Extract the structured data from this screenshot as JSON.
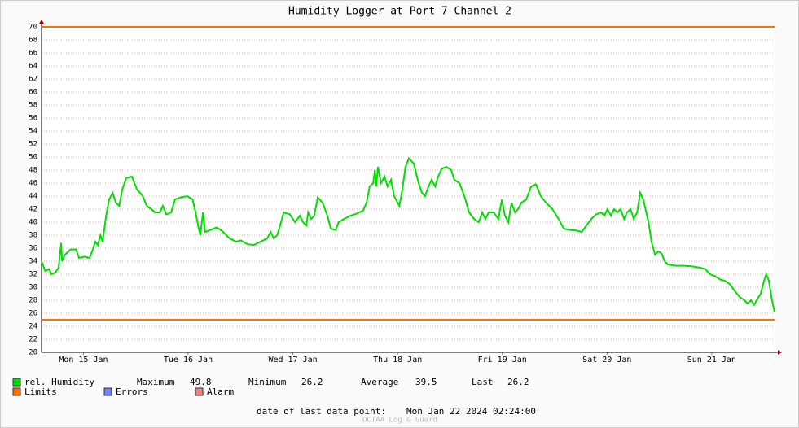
{
  "chart_data": {
    "type": "line",
    "title": "Humidity Logger at Port 7 Channel 2",
    "xlim": [
      2.4,
      170.4
    ],
    "xticks": [
      {
        "value": 12,
        "label": "Mon 15 Jan"
      },
      {
        "value": 36,
        "label": "Tue 16 Jan"
      },
      {
        "value": 60,
        "label": "Wed 17 Jan"
      },
      {
        "value": 84,
        "label": "Thu 18 Jan"
      },
      {
        "value": 108,
        "label": "Fri 19 Jan"
      },
      {
        "value": 132,
        "label": "Sat 20 Jan"
      },
      {
        "value": 156,
        "label": "Sun 21 Jan"
      }
    ],
    "ylim": [
      20,
      70
    ],
    "yticks": [
      20,
      22,
      24,
      26,
      28,
      30,
      32,
      34,
      36,
      38,
      40,
      42,
      44,
      46,
      48,
      50,
      52,
      54,
      56,
      58,
      60,
      62,
      64,
      66,
      68,
      70
    ],
    "grid": true,
    "x": [
      2.4,
      3.2,
      4.1,
      4.7,
      5.6,
      6.3,
      6.9,
      7.1,
      7.8,
      9.0,
      10.3,
      11.0,
      12.3,
      13.4,
      14.0,
      14.7,
      15.3,
      15.9,
      16.4,
      17.2,
      17.9,
      18.7,
      19.4,
      20.2,
      20.9,
      21.8,
      23.1,
      24.3,
      25.6,
      26.5,
      27.6,
      28.4,
      29.5,
      30.2,
      31.0,
      32.1,
      33.0,
      34.3,
      35.8,
      37.0,
      37.7,
      38.4,
      38.8,
      39.4,
      39.9,
      41.1,
      42.6,
      44.0,
      45.5,
      47.0,
      48.1,
      49.6,
      51.1,
      52.6,
      54.1,
      54.9,
      55.6,
      56.4,
      57.1,
      57.9,
      59.3,
      60.5,
      61.6,
      62.3,
      63.1,
      63.5,
      64.2,
      64.9,
      65.7,
      66.8,
      67.9,
      68.7,
      69.8,
      70.5,
      71.7,
      73.2,
      74.6,
      76.1,
      76.9,
      77.6,
      78.4,
      78.8,
      79.1,
      79.5,
      80.2,
      81.0,
      81.7,
      82.5,
      83.2,
      84.4,
      85.1,
      85.8,
      86.6,
      87.7,
      88.8,
      89.6,
      90.3,
      91.1,
      91.8,
      92.6,
      93.3,
      94.1,
      95.2,
      96.3,
      97.0,
      98.2,
      99.3,
      100.4,
      101.5,
      102.6,
      103.4,
      104.1,
      104.9,
      106.0,
      107.1,
      107.9,
      108.6,
      109.4,
      110.1,
      110.9,
      111.6,
      112.4,
      113.5,
      114.6,
      115.7,
      116.8,
      118.0,
      119.5,
      120.9,
      122.1,
      123.6,
      125.0,
      126.2,
      127.3,
      128.4,
      129.5,
      130.6,
      131.4,
      132.1,
      132.9,
      133.6,
      134.4,
      135.1,
      135.9,
      136.6,
      137.4,
      138.1,
      138.9,
      139.6,
      140.3,
      141.5,
      142.2,
      143.0,
      143.7,
      144.5,
      145.2,
      145.9,
      147.8,
      149.7,
      151.5,
      153.4,
      154.5,
      155.6,
      156.8,
      157.9,
      159.0,
      160.1,
      161.2,
      162.4,
      163.5,
      164.2,
      165.0,
      165.7,
      166.5,
      167.2,
      168.0,
      168.5,
      169.1,
      169.8,
      170.4
    ],
    "series": [
      {
        "name": "rel. Humidity",
        "color": "#00e000",
        "values": [
          34,
          32.5,
          32.8,
          32,
          32.3,
          33,
          36.8,
          34,
          35,
          35.8,
          35.8,
          34.5,
          34.7,
          34.5,
          35.5,
          37,
          36.5,
          38,
          37,
          41,
          43.5,
          44.5,
          43,
          42.5,
          45,
          46.8,
          47,
          45,
          44,
          42.5,
          42,
          41.5,
          41.5,
          42.5,
          41.2,
          41.5,
          43.5,
          43.8,
          44,
          43.5,
          41.5,
          39,
          38,
          41.5,
          38.5,
          38.8,
          39.2,
          38.5,
          37.5,
          37,
          37.2,
          36.6,
          36.5,
          37,
          37.5,
          38.5,
          37.5,
          38,
          39.5,
          41.5,
          41.2,
          40,
          41,
          40,
          39.5,
          41.5,
          40.5,
          41,
          43.8,
          43,
          41,
          39,
          38.8,
          40,
          40.5,
          41,
          41.3,
          41.8,
          43,
          45.5,
          46,
          48,
          45.5,
          48.5,
          46,
          47,
          45.5,
          46.5,
          44,
          42.5,
          45,
          48.5,
          49.8,
          49,
          46,
          44.5,
          44,
          45.5,
          46.5,
          45.5,
          47,
          48.2,
          48.5,
          48,
          46.5,
          46,
          44,
          41.5,
          40.5,
          40,
          41.5,
          40.5,
          41.5,
          41.5,
          40.5,
          43.5,
          41,
          40,
          43,
          41.5,
          42,
          43,
          43.5,
          45.5,
          45.8,
          44,
          43,
          42,
          40.5,
          39,
          38.8,
          38.7,
          38.5,
          39.5,
          40.5,
          41.2,
          41.5,
          41,
          42,
          41,
          42,
          41.5,
          42,
          40.5,
          41.5,
          42,
          40.5,
          41.5,
          44.5,
          43.5,
          40,
          37,
          35,
          35.5,
          35.2,
          34,
          33.5,
          33.3,
          33.3,
          33.2,
          33,
          32.8,
          32,
          31.7,
          31.2,
          31,
          30.5,
          29.5,
          28.5,
          28,
          27.5,
          28,
          27.3,
          28.2,
          29,
          31,
          32,
          31,
          28,
          26.2
        ]
      }
    ],
    "limits": {
      "name": "Limits",
      "color": "#ff7000",
      "values": [
        25,
        70
      ]
    },
    "errors": {
      "name": "Errors",
      "color": "#7080ff"
    },
    "alarm": {
      "name": "Alarm",
      "color": "#f08080"
    },
    "stats": [
      {
        "label": "Maximum",
        "value": 49.8
      },
      {
        "label": "Minimum",
        "value": 26.2
      },
      {
        "label": "Average",
        "value": 39.5
      },
      {
        "label": "Last",
        "value": 26.2
      }
    ],
    "footer": {
      "label": "date of last data point:",
      "value": "Mon Jan 22 2024 02:24:00"
    },
    "watermark": "OCTAA Log & Guard"
  }
}
